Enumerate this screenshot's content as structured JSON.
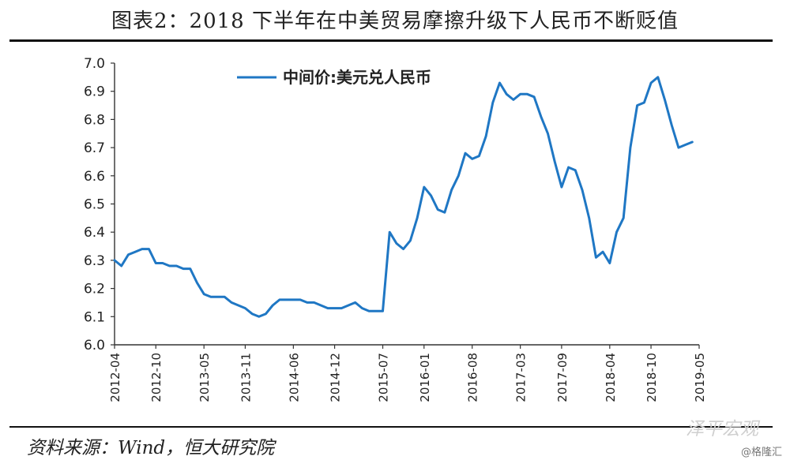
{
  "header": {
    "title": "图表2：2018 下半年在中美贸易摩擦升级下人民币不断贬值"
  },
  "footer": {
    "source": "资料来源：Wind，恒大研究院",
    "brand": "泽平宏观",
    "credit": "@格隆汇"
  },
  "colors": {
    "line": "#1f77c4",
    "axis": "#333333",
    "text": "#222222"
  },
  "chart_data": {
    "type": "line",
    "title": "",
    "xlabel": "",
    "ylabel": "",
    "ylim": [
      6.0,
      7.0
    ],
    "y_ticks": [
      "6.0",
      "6.1",
      "6.2",
      "6.3",
      "6.4",
      "6.5",
      "6.6",
      "6.7",
      "6.8",
      "6.9",
      "7.0"
    ],
    "x_ticks": [
      "2012-04",
      "2012-10",
      "2013-05",
      "2013-11",
      "2014-06",
      "2014-12",
      "2015-07",
      "2016-01",
      "2016-08",
      "2017-03",
      "2017-09",
      "2018-04",
      "2018-10",
      "2019-05"
    ],
    "legend": {
      "position": "top-left"
    },
    "series": [
      {
        "name": "中间价:美元兑人民币",
        "color": "#1f77c4",
        "x": [
          "2012-04",
          "2012-05",
          "2012-06",
          "2012-07",
          "2012-08",
          "2012-09",
          "2012-10",
          "2012-11",
          "2012-12",
          "2013-01",
          "2013-02",
          "2013-03",
          "2013-04",
          "2013-05",
          "2013-06",
          "2013-07",
          "2013-08",
          "2013-09",
          "2013-10",
          "2013-11",
          "2013-12",
          "2014-01",
          "2014-02",
          "2014-03",
          "2014-04",
          "2014-05",
          "2014-06",
          "2014-07",
          "2014-08",
          "2014-09",
          "2014-10",
          "2014-11",
          "2014-12",
          "2015-01",
          "2015-02",
          "2015-03",
          "2015-04",
          "2015-05",
          "2015-06",
          "2015-07",
          "2015-08",
          "2015-09",
          "2015-10",
          "2015-11",
          "2015-12",
          "2016-01",
          "2016-02",
          "2016-03",
          "2016-04",
          "2016-05",
          "2016-06",
          "2016-07",
          "2016-08",
          "2016-09",
          "2016-10",
          "2016-11",
          "2016-12",
          "2017-01",
          "2017-02",
          "2017-03",
          "2017-04",
          "2017-05",
          "2017-06",
          "2017-07",
          "2017-08",
          "2017-09",
          "2017-10",
          "2017-11",
          "2017-12",
          "2018-01",
          "2018-02",
          "2018-03",
          "2018-04",
          "2018-05",
          "2018-06",
          "2018-07",
          "2018-08",
          "2018-09",
          "2018-10",
          "2018-11",
          "2018-12",
          "2019-01",
          "2019-02",
          "2019-03",
          "2019-04"
        ],
        "values": [
          6.3,
          6.28,
          6.32,
          6.33,
          6.34,
          6.34,
          6.29,
          6.29,
          6.28,
          6.28,
          6.27,
          6.27,
          6.22,
          6.18,
          6.17,
          6.17,
          6.17,
          6.15,
          6.14,
          6.13,
          6.11,
          6.1,
          6.11,
          6.14,
          6.16,
          6.16,
          6.16,
          6.16,
          6.15,
          6.15,
          6.14,
          6.13,
          6.13,
          6.13,
          6.14,
          6.15,
          6.13,
          6.12,
          6.12,
          6.12,
          6.4,
          6.36,
          6.34,
          6.37,
          6.45,
          6.56,
          6.53,
          6.48,
          6.47,
          6.55,
          6.6,
          6.68,
          6.66,
          6.67,
          6.74,
          6.86,
          6.93,
          6.89,
          6.87,
          6.89,
          6.89,
          6.88,
          6.81,
          6.75,
          6.65,
          6.56,
          6.63,
          6.62,
          6.55,
          6.45,
          6.31,
          6.33,
          6.29,
          6.4,
          6.45,
          6.7,
          6.85,
          6.86,
          6.93,
          6.95,
          6.87,
          6.78,
          6.7,
          6.71,
          6.72
        ]
      }
    ]
  }
}
